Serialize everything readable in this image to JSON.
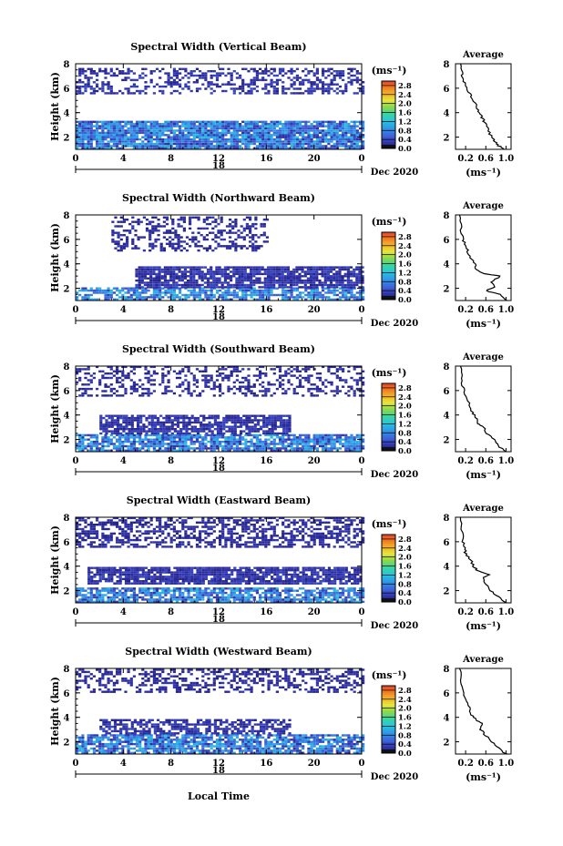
{
  "figure": {
    "x_axis_title": "Local Time",
    "date_day": "18",
    "date_label": "Dec 2020",
    "colorbar_unit": "(ms⁻¹)",
    "avg_title": "Average",
    "avg_xlabel": "(ms⁻¹)"
  },
  "chart_data": [
    {
      "type": "heatmap",
      "title": "Spectral Width (Vertical Beam)",
      "ylabel": "Height (km)",
      "x_ticks": [
        "0",
        "4",
        "8",
        "12",
        "16",
        "20",
        "0"
      ],
      "xlim": [
        0,
        24
      ],
      "y_ticks": [
        "2",
        "4",
        "6",
        "8"
      ],
      "ylim": [
        1,
        8
      ],
      "colorbar": {
        "ticks": [
          "0.0",
          "0.4",
          "0.8",
          "1.2",
          "1.6",
          "2.0",
          "2.4",
          "2.8"
        ],
        "range": [
          0,
          3.0
        ]
      },
      "layers": [
        {
          "h0": 1.0,
          "h1": 3.2,
          "density": 0.92,
          "vmin": 0.2,
          "vmax": 1.2,
          "t0": 0,
          "t1": 24
        },
        {
          "h0": 5.5,
          "h1": 7.6,
          "density": 0.45,
          "vmin": 0.1,
          "vmax": 0.4,
          "t0": 0,
          "t1": 24
        }
      ],
      "average": {
        "xlim": [
          0.0,
          1.1
        ],
        "x_ticks": [
          "0.2",
          "0.6",
          "1.0"
        ],
        "y_ticks": [
          "2",
          "4",
          "6",
          "8"
        ],
        "ylim": [
          1,
          8
        ],
        "profile": [
          [
            1.0,
            0.98
          ],
          [
            1.3,
            0.85
          ],
          [
            1.6,
            0.78
          ],
          [
            2.0,
            0.72
          ],
          [
            2.5,
            0.65
          ],
          [
            3.0,
            0.6
          ],
          [
            3.4,
            0.55
          ],
          [
            3.8,
            0.5
          ],
          [
            4.2,
            0.45
          ],
          [
            4.8,
            0.38
          ],
          [
            5.3,
            0.32
          ],
          [
            5.8,
            0.25
          ],
          [
            6.3,
            0.2
          ],
          [
            6.8,
            0.15
          ],
          [
            7.3,
            0.12
          ],
          [
            8.0,
            0.1
          ]
        ]
      }
    },
    {
      "type": "heatmap",
      "title": "Spectral Width (Northward Beam)",
      "ylabel": "Height (km)",
      "x_ticks": [
        "0",
        "4",
        "8",
        "12",
        "16",
        "20",
        "0"
      ],
      "xlim": [
        0,
        24
      ],
      "y_ticks": [
        "2",
        "4",
        "6",
        "8"
      ],
      "ylim": [
        1,
        8
      ],
      "colorbar": {
        "ticks": [
          "0.0",
          "0.4",
          "0.8",
          "1.2",
          "1.6",
          "2.0",
          "2.4",
          "2.8"
        ],
        "range": [
          0,
          3.0
        ]
      },
      "layers": [
        {
          "h0": 1.0,
          "h1": 2.0,
          "density": 0.7,
          "vmin": 0.3,
          "vmax": 1.2,
          "t0": 0,
          "t1": 24
        },
        {
          "h0": 2.0,
          "h1": 3.8,
          "density": 0.85,
          "vmin": 0.1,
          "vmax": 0.4,
          "t0": 5,
          "t1": 24
        },
        {
          "h0": 5.0,
          "h1": 7.8,
          "density": 0.4,
          "vmin": 0.1,
          "vmax": 0.3,
          "t0": 3,
          "t1": 16
        }
      ],
      "average": {
        "xlim": [
          0.0,
          1.1
        ],
        "x_ticks": [
          "0.2",
          "0.6",
          "1.0"
        ],
        "y_ticks": [
          "2",
          "4",
          "6",
          "8"
        ],
        "ylim": [
          1,
          8
        ],
        "profile": [
          [
            1.0,
            1.0
          ],
          [
            1.5,
            0.9
          ],
          [
            1.8,
            0.6
          ],
          [
            2.1,
            0.8
          ],
          [
            2.5,
            0.7
          ],
          [
            3.0,
            0.9
          ],
          [
            3.2,
            0.55
          ],
          [
            3.5,
            0.4
          ],
          [
            4.0,
            0.38
          ],
          [
            4.5,
            0.3
          ],
          [
            5.0,
            0.25
          ],
          [
            5.5,
            0.2
          ],
          [
            6.0,
            0.15
          ],
          [
            7.0,
            0.1
          ],
          [
            8.0,
            0.08
          ]
        ]
      }
    },
    {
      "type": "heatmap",
      "title": "Spectral Width (Southward Beam)",
      "ylabel": "Height (km)",
      "x_ticks": [
        "0",
        "4",
        "8",
        "12",
        "16",
        "20",
        "0"
      ],
      "xlim": [
        0,
        24
      ],
      "y_ticks": [
        "2",
        "4",
        "6",
        "8"
      ],
      "ylim": [
        1,
        8
      ],
      "colorbar": {
        "ticks": [
          "0.0",
          "0.4",
          "0.8",
          "1.2",
          "1.6",
          "2.0",
          "2.4",
          "2.8"
        ],
        "range": [
          0,
          3.0
        ]
      },
      "layers": [
        {
          "h0": 1.0,
          "h1": 2.4,
          "density": 0.8,
          "vmin": 0.2,
          "vmax": 1.2,
          "t0": 0,
          "t1": 24
        },
        {
          "h0": 2.4,
          "h1": 3.9,
          "density": 0.75,
          "vmin": 0.1,
          "vmax": 0.4,
          "t0": 2,
          "t1": 18
        },
        {
          "h0": 5.5,
          "h1": 7.9,
          "density": 0.35,
          "vmin": 0.1,
          "vmax": 0.3,
          "t0": 0,
          "t1": 24
        }
      ],
      "average": {
        "xlim": [
          0.0,
          1.1
        ],
        "x_ticks": [
          "0.2",
          "0.6",
          "1.0"
        ],
        "y_ticks": [
          "2",
          "4",
          "6",
          "8"
        ],
        "ylim": [
          1,
          8
        ],
        "profile": [
          [
            1.0,
            1.0
          ],
          [
            1.5,
            0.85
          ],
          [
            2.0,
            0.75
          ],
          [
            2.5,
            0.62
          ],
          [
            3.0,
            0.55
          ],
          [
            3.3,
            0.45
          ],
          [
            3.8,
            0.4
          ],
          [
            4.2,
            0.33
          ],
          [
            4.8,
            0.28
          ],
          [
            5.5,
            0.22
          ],
          [
            6.2,
            0.15
          ],
          [
            7.0,
            0.12
          ],
          [
            8.0,
            0.1
          ]
        ]
      }
    },
    {
      "type": "heatmap",
      "title": "Spectral Width (Eastward Beam)",
      "ylabel": "Height (km)",
      "x_ticks": [
        "0",
        "4",
        "8",
        "12",
        "16",
        "20",
        "0"
      ],
      "xlim": [
        0,
        24
      ],
      "y_ticks": [
        "2",
        "4",
        "6",
        "8"
      ],
      "ylim": [
        1,
        8
      ],
      "colorbar": {
        "ticks": [
          "0.0",
          "0.4",
          "0.8",
          "1.2",
          "1.6",
          "2.0",
          "2.4",
          "2.8"
        ],
        "range": [
          0,
          3.0
        ]
      },
      "layers": [
        {
          "h0": 1.0,
          "h1": 2.2,
          "density": 0.75,
          "vmin": 0.2,
          "vmax": 1.2,
          "t0": 0,
          "t1": 24
        },
        {
          "h0": 2.5,
          "h1": 3.9,
          "density": 0.85,
          "vmin": 0.1,
          "vmax": 0.4,
          "t0": 1,
          "t1": 24
        },
        {
          "h0": 5.5,
          "h1": 7.9,
          "density": 0.55,
          "vmin": 0.1,
          "vmax": 0.3,
          "t0": 0,
          "t1": 24
        }
      ],
      "average": {
        "xlim": [
          0.0,
          1.1
        ],
        "x_ticks": [
          "0.2",
          "0.6",
          "1.0"
        ],
        "y_ticks": [
          "2",
          "4",
          "6",
          "8"
        ],
        "ylim": [
          1,
          8
        ],
        "profile": [
          [
            1.0,
            1.0
          ],
          [
            1.5,
            0.85
          ],
          [
            2.0,
            0.7
          ],
          [
            2.5,
            0.6
          ],
          [
            3.0,
            0.55
          ],
          [
            3.3,
            0.65
          ],
          [
            3.6,
            0.45
          ],
          [
            4.0,
            0.35
          ],
          [
            4.5,
            0.3
          ],
          [
            5.0,
            0.2
          ],
          [
            5.5,
            0.18
          ],
          [
            6.0,
            0.15
          ],
          [
            7.0,
            0.12
          ],
          [
            8.0,
            0.1
          ]
        ]
      }
    },
    {
      "type": "heatmap",
      "title": "Spectral Width (Westward Beam)",
      "ylabel": "Height (km)",
      "x_ticks": [
        "0",
        "4",
        "8",
        "12",
        "16",
        "20",
        "0"
      ],
      "xlim": [
        0,
        24
      ],
      "y_ticks": [
        "2",
        "4",
        "6",
        "8"
      ],
      "ylim": [
        1,
        8
      ],
      "colorbar": {
        "ticks": [
          "0.0",
          "0.4",
          "0.8",
          "1.2",
          "1.6",
          "2.0",
          "2.4",
          "2.8"
        ],
        "range": [
          0,
          3.0
        ]
      },
      "layers": [
        {
          "h0": 1.0,
          "h1": 2.6,
          "density": 0.8,
          "vmin": 0.2,
          "vmax": 1.2,
          "t0": 0,
          "t1": 24
        },
        {
          "h0": 2.6,
          "h1": 3.8,
          "density": 0.65,
          "vmin": 0.1,
          "vmax": 0.4,
          "t0": 2,
          "t1": 18
        },
        {
          "h0": 6.0,
          "h1": 7.9,
          "density": 0.45,
          "vmin": 0.1,
          "vmax": 0.3,
          "t0": 0,
          "t1": 24
        }
      ],
      "average": {
        "xlim": [
          0.0,
          1.1
        ],
        "x_ticks": [
          "0.2",
          "0.6",
          "1.0"
        ],
        "y_ticks": [
          "2",
          "4",
          "6",
          "8"
        ],
        "ylim": [
          1,
          8
        ],
        "profile": [
          [
            1.0,
            1.0
          ],
          [
            1.5,
            0.85
          ],
          [
            2.0,
            0.72
          ],
          [
            2.5,
            0.6
          ],
          [
            3.0,
            0.5
          ],
          [
            3.5,
            0.55
          ],
          [
            3.8,
            0.4
          ],
          [
            4.2,
            0.32
          ],
          [
            4.8,
            0.28
          ],
          [
            5.3,
            0.22
          ],
          [
            6.0,
            0.15
          ],
          [
            7.0,
            0.1
          ],
          [
            8.0,
            0.08
          ]
        ]
      }
    }
  ]
}
